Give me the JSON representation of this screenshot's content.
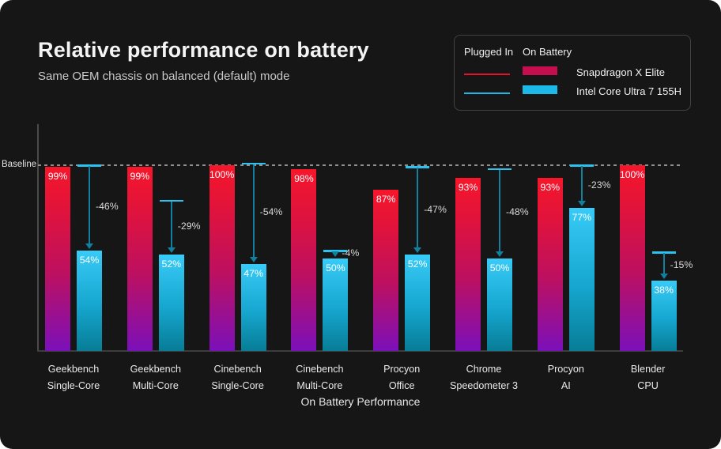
{
  "header": {
    "title": "Relative performance on battery",
    "subtitle": "Same OEM chassis on balanced (default) mode"
  },
  "legend": {
    "col_plugged": "Plugged In",
    "col_battery": "On Battery",
    "series": [
      {
        "name": "Snapdragon X Elite",
        "line_color": "#e8112d",
        "bar_color": "#c40e4e"
      },
      {
        "name": "Intel Core Ultra 7 155H",
        "line_color": "#1cb8e8",
        "bar_color": "#1cb8e8"
      }
    ]
  },
  "chart_data": {
    "type": "bar",
    "title": "Relative performance on battery",
    "subtitle": "Same OEM chassis on balanced (default) mode",
    "xlabel": "On Battery Performance",
    "ylabel": "",
    "ylim": [
      0,
      122
    ],
    "baseline_label": "Baseline",
    "baseline_value": 100,
    "grid": false,
    "legend_position": "top-right",
    "categories": [
      {
        "line1": "Geekbench",
        "line2": "Single-Core"
      },
      {
        "line1": "Geekbench",
        "line2": "Multi-Core"
      },
      {
        "line1": "Cinebench",
        "line2": "Single-Core"
      },
      {
        "line1": "Cinebench",
        "line2": "Multi-Core"
      },
      {
        "line1": "Procyon",
        "line2": "Office"
      },
      {
        "line1": "Chrome",
        "line2": "Speedometer 3"
      },
      {
        "line1": "Procyon",
        "line2": "AI"
      },
      {
        "line1": "Blender",
        "line2": "CPU"
      }
    ],
    "series": [
      {
        "name": "Snapdragon X Elite - On Battery",
        "values": [
          99,
          99,
          100,
          98,
          87,
          93,
          93,
          100
        ]
      },
      {
        "name": "Intel Core Ultra 7 155H - On Battery",
        "values": [
          54,
          52,
          47,
          50,
          52,
          50,
          77,
          38
        ]
      },
      {
        "name": "Intel Core Ultra 7 155H - Plugged In (drop reference)",
        "values": [
          100,
          81,
          101,
          54,
          99,
          98,
          100,
          53
        ]
      }
    ],
    "drop_labels": [
      "-46%",
      "-29%",
      "-54%",
      "-4%",
      "-47%",
      "-48%",
      "-23%",
      "-15%"
    ]
  },
  "colors": {
    "panel_bg": "#161616",
    "red_bar_top": "#f6162a",
    "red_bar_bottom": "#7b10ba",
    "cyan_bar_top": "#38cbf7",
    "cyan_bar_bottom": "#077d96",
    "drop_line": "#11809f",
    "drop_cap": "#2bc2ef",
    "baseline_dots": "#8f8f8f",
    "axis_line": "#4a4a4a"
  }
}
